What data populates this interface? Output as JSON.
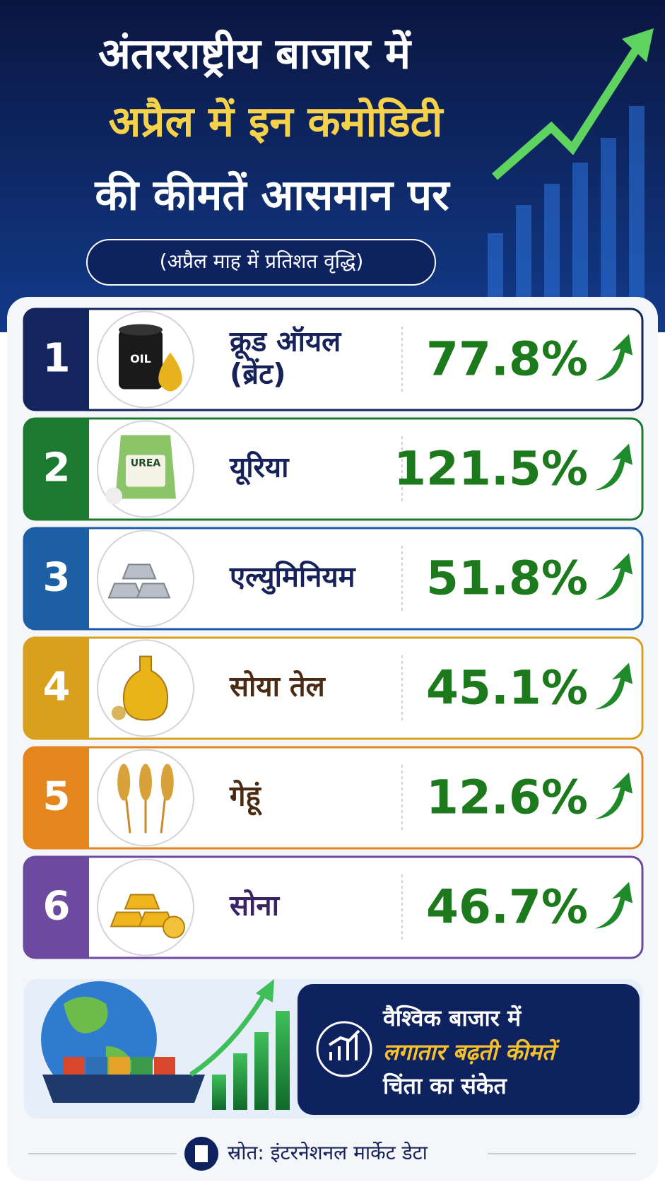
{
  "header": {
    "title_lines": [
      "अंतरराष्ट्रीय बाजार में",
      "अप्रैल में इन कमोडिटी",
      "की कीमतें आसमान पर"
    ],
    "subtitle": "(अप्रैल माह में प्रतिशत वृद्धि)"
  },
  "items": [
    {
      "rank": "1",
      "name": [
        "क्रूड ऑयल",
        "(ब्रेंट)"
      ],
      "value": "77.8%",
      "icon_label": "OIL",
      "color": "#14245c",
      "name_color": "#17225a"
    },
    {
      "rank": "2",
      "name": [
        "यूरिया"
      ],
      "value": "121.5%",
      "icon_label": "UREA",
      "color": "#1b7a2f",
      "name_color": "#17225a"
    },
    {
      "rank": "3",
      "name": [
        "एल्युमिनियम"
      ],
      "value": "51.8%",
      "color": "#1c5fa5",
      "name_color": "#17225a"
    },
    {
      "rank": "4",
      "name": [
        "सोया तेल"
      ],
      "value": "45.1%",
      "color": "#d8a01c",
      "name_color": "#4a2a12"
    },
    {
      "rank": "5",
      "name": [
        "गेहूं"
      ],
      "value": "12.6%",
      "color": "#e5861c",
      "name_color": "#4a2a12"
    },
    {
      "rank": "6",
      "name": [
        "सोना"
      ],
      "value": "46.7%",
      "color": "#6b4aa0",
      "name_color": "#3b2466"
    }
  ],
  "banner": {
    "lines": [
      "वैश्विक बाजार में",
      "लगातार बढ़ती कीमतें",
      "चिंता का संकेत"
    ]
  },
  "source": "स्रोत: इंटरनेशनल मार्केट डेटा"
}
